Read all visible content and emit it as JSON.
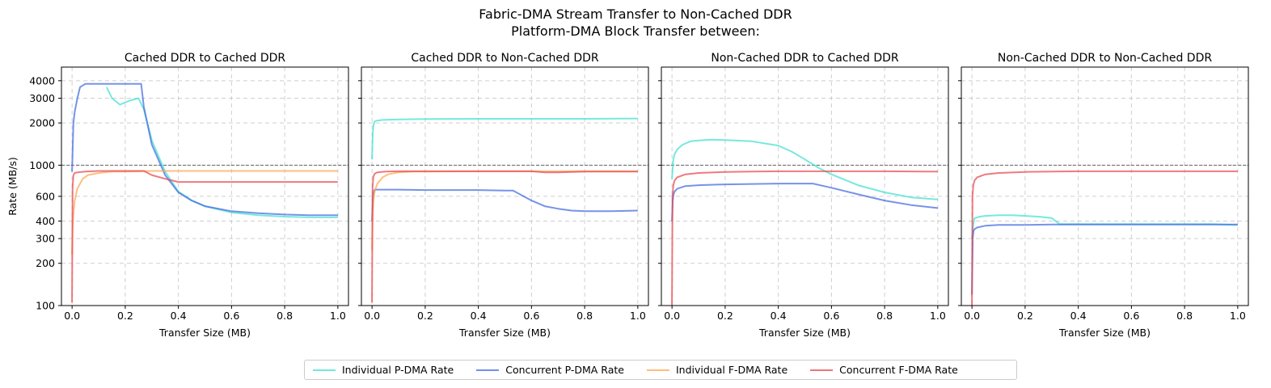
{
  "figure": {
    "suptitle_line1": "Fabric-DMA Stream Transfer to Non-Cached DDR",
    "suptitle_line2": "Platform-DMA Block Transfer between:"
  },
  "chart_data": {
    "type": "line",
    "xlabel": "Transfer Size (MB)",
    "ylabel": "Rate (MB/s)",
    "yscale": "log",
    "ylim": [
      100,
      5000
    ],
    "xlim": [
      -0.04,
      1.04
    ],
    "xticks": [
      0.0,
      0.2,
      0.4,
      0.6,
      0.8,
      1.0
    ],
    "xtick_labels": [
      "0.0",
      "0.2",
      "0.4",
      "0.6",
      "0.8",
      "1.0"
    ],
    "yticks": [
      100,
      200,
      300,
      400,
      600,
      1000,
      2000,
      3000,
      4000
    ],
    "ytick_labels": [
      "100",
      "200",
      "300",
      "400",
      "600",
      "1000",
      "2000",
      "3000",
      "4000"
    ],
    "reference_line": 1000,
    "grid": true,
    "legend_position": "bottom-center",
    "series_names": [
      "Individual P-DMA Rate",
      "Concurrent P-DMA Rate",
      "Individual F-DMA Rate",
      "Concurrent F-DMA Rate"
    ],
    "series_colors": [
      "#40E0D0",
      "#4169E1",
      "#FFA54F",
      "#E8474C"
    ],
    "panels": [
      {
        "title": "Cached DDR to Cached DDR",
        "series": [
          {
            "name": "Individual P-DMA Rate",
            "x": [
              0.13,
              0.15,
              0.18,
              0.2,
              0.22,
              0.25,
              0.27,
              0.3,
              0.35,
              0.4,
              0.45,
              0.5,
              0.6,
              0.7,
              0.8,
              0.9,
              1.0
            ],
            "y": [
              3600,
              3000,
              2700,
              2800,
              2900,
              3000,
              2500,
              1500,
              900,
              650,
              560,
              510,
              460,
              440,
              430,
              425,
              425
            ]
          },
          {
            "name": "Concurrent P-DMA Rate",
            "x": [
              0.0,
              0.005,
              0.01,
              0.02,
              0.03,
              0.05,
              0.1,
              0.15,
              0.2,
              0.26,
              0.27,
              0.3,
              0.35,
              0.4,
              0.45,
              0.5,
              0.6,
              0.7,
              0.8,
              0.9,
              1.0
            ],
            "y": [
              900,
              2000,
              2400,
              3000,
              3600,
              3800,
              3800,
              3800,
              3800,
              3800,
              2600,
              1400,
              850,
              640,
              560,
              510,
              470,
              455,
              445,
              440,
              440
            ]
          },
          {
            "name": "Individual F-DMA Rate",
            "x": [
              0.0,
              0.002,
              0.005,
              0.01,
              0.02,
              0.04,
              0.06,
              0.1,
              0.15,
              0.2,
              0.3,
              0.4,
              0.5,
              0.6,
              0.8,
              1.0
            ],
            "y": [
              230,
              350,
              450,
              560,
              680,
              800,
              850,
              880,
              900,
              900,
              910,
              910,
              910,
              910,
              910,
              910
            ]
          },
          {
            "name": "Concurrent F-DMA Rate",
            "x": [
              0.0,
              0.002,
              0.005,
              0.01,
              0.02,
              0.05,
              0.1,
              0.2,
              0.27,
              0.3,
              0.35,
              0.4,
              0.5,
              0.6,
              0.8,
              1.0
            ],
            "y": [
              105,
              700,
              850,
              880,
              890,
              900,
              910,
              910,
              910,
              850,
              800,
              760,
              760,
              760,
              760,
              760
            ]
          }
        ]
      },
      {
        "title": "Cached DDR to Non-Cached DDR",
        "series": [
          {
            "name": "Individual P-DMA Rate",
            "x": [
              0.0,
              0.003,
              0.006,
              0.01,
              0.02,
              0.04,
              0.1,
              0.2,
              0.4,
              0.6,
              0.8,
              1.0
            ],
            "y": [
              1100,
              1700,
              1950,
              2050,
              2080,
              2100,
              2120,
              2130,
              2140,
              2140,
              2140,
              2150
            ]
          },
          {
            "name": "Concurrent P-DMA Rate",
            "x": [
              0.0,
              0.003,
              0.006,
              0.01,
              0.02,
              0.05,
              0.1,
              0.2,
              0.3,
              0.4,
              0.5,
              0.53,
              0.6,
              0.65,
              0.7,
              0.75,
              0.8,
              0.9,
              1.0
            ],
            "y": [
              400,
              560,
              640,
              670,
              670,
              670,
              670,
              665,
              665,
              665,
              660,
              660,
              560,
              510,
              490,
              475,
              470,
              470,
              475
            ]
          },
          {
            "name": "Individual F-DMA Rate",
            "x": [
              0.0,
              0.002,
              0.005,
              0.01,
              0.02,
              0.04,
              0.06,
              0.1,
              0.15,
              0.2,
              0.4,
              0.6,
              0.8,
              1.0
            ],
            "y": [
              250,
              400,
              550,
              650,
              740,
              820,
              860,
              890,
              900,
              900,
              905,
              905,
              905,
              905
            ]
          },
          {
            "name": "Concurrent F-DMA Rate",
            "x": [
              0.0,
              0.002,
              0.005,
              0.01,
              0.02,
              0.05,
              0.1,
              0.2,
              0.4,
              0.6,
              0.65,
              0.7,
              0.8,
              1.0
            ],
            "y": [
              105,
              700,
              830,
              870,
              890,
              900,
              905,
              905,
              905,
              905,
              890,
              890,
              900,
              900
            ]
          }
        ]
      },
      {
        "title": "Non-Cached DDR to Cached DDR",
        "series": [
          {
            "name": "Individual P-DMA Rate",
            "x": [
              0.0,
              0.005,
              0.01,
              0.02,
              0.04,
              0.07,
              0.1,
              0.15,
              0.2,
              0.3,
              0.4,
              0.45,
              0.5,
              0.55,
              0.6,
              0.7,
              0.8,
              0.9,
              1.0
            ],
            "y": [
              800,
              1100,
              1200,
              1300,
              1400,
              1480,
              1500,
              1520,
              1510,
              1480,
              1380,
              1250,
              1100,
              960,
              860,
              720,
              640,
              590,
              570
            ]
          },
          {
            "name": "Concurrent P-DMA Rate",
            "x": [
              0.0,
              0.003,
              0.006,
              0.01,
              0.02,
              0.05,
              0.1,
              0.2,
              0.3,
              0.4,
              0.5,
              0.53,
              0.6,
              0.7,
              0.8,
              0.9,
              1.0
            ],
            "y": [
              400,
              560,
              620,
              650,
              680,
              710,
              720,
              730,
              735,
              740,
              740,
              740,
              690,
              620,
              560,
              520,
              495
            ]
          },
          {
            "name": "Concurrent F-DMA Rate",
            "x": [
              0.0,
              0.002,
              0.005,
              0.01,
              0.02,
              0.05,
              0.1,
              0.2,
              0.3,
              0.4,
              0.6,
              0.8,
              1.0
            ],
            "y": [
              100,
              600,
              720,
              780,
              820,
              860,
              880,
              895,
              900,
              905,
              905,
              905,
              900
            ]
          }
        ]
      },
      {
        "title": "Non-Cached DDR to Non-Cached DDR",
        "series": [
          {
            "name": "Individual P-DMA Rate",
            "x": [
              0.0,
              0.005,
              0.01,
              0.03,
              0.05,
              0.1,
              0.15,
              0.2,
              0.25,
              0.3,
              0.33,
              0.4,
              0.5,
              0.6,
              0.7,
              0.8,
              0.9,
              1.0
            ],
            "y": [
              300,
              380,
              420,
              430,
              435,
              440,
              440,
              435,
              430,
              420,
              380,
              380,
              380,
              380,
              380,
              380,
              380,
              375
            ]
          },
          {
            "name": "Concurrent P-DMA Rate",
            "x": [
              0.0,
              0.003,
              0.006,
              0.01,
              0.02,
              0.05,
              0.1,
              0.2,
              0.3,
              0.4,
              0.5,
              0.6,
              0.8,
              1.0
            ],
            "y": [
              120,
              300,
              340,
              350,
              360,
              370,
              375,
              375,
              378,
              378,
              378,
              378,
              378,
              378
            ]
          },
          {
            "name": "Concurrent F-DMA Rate",
            "x": [
              0.0,
              0.002,
              0.005,
              0.01,
              0.02,
              0.05,
              0.1,
              0.2,
              0.3,
              0.4,
              0.6,
              0.8,
              1.0
            ],
            "y": [
              100,
              600,
              720,
              780,
              820,
              860,
              880,
              895,
              900,
              905,
              905,
              905,
              905
            ]
          }
        ]
      }
    ]
  }
}
